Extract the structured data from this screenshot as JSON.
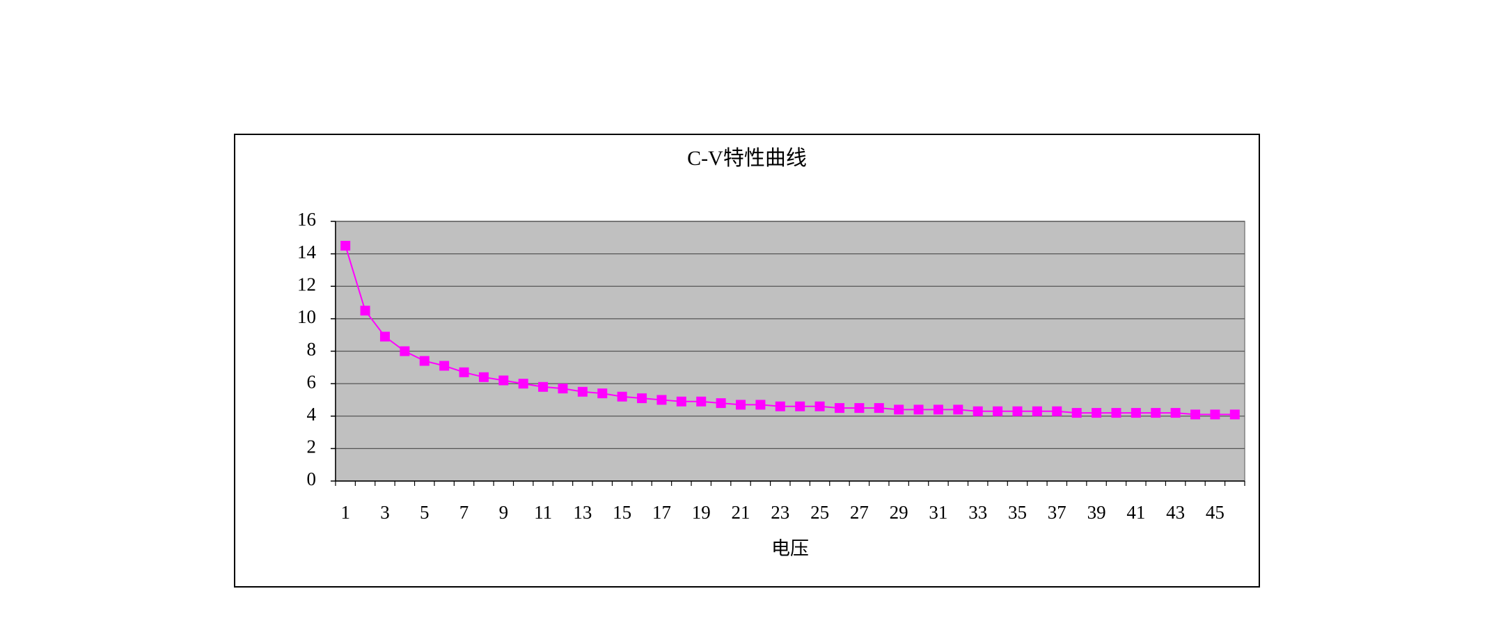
{
  "chart_data": {
    "type": "line",
    "title": "C-V特性曲线",
    "x_label": "电压",
    "categories": [
      "1",
      null,
      "3",
      null,
      "5",
      null,
      "7",
      null,
      "9",
      null,
      "11",
      null,
      "13",
      null,
      "15",
      null,
      "17",
      null,
      "19",
      null,
      "21",
      null,
      "23",
      null,
      "25",
      null,
      "27",
      null,
      "29",
      null,
      "31",
      null,
      "33",
      null,
      "35",
      null,
      "37",
      null,
      "39",
      null,
      "41",
      null,
      "43",
      null,
      "45",
      null
    ],
    "series": [
      {
        "color": "#ff00ff",
        "values": [
          14.5,
          10.5,
          8.9,
          8.0,
          7.4,
          7.1,
          6.7,
          6.4,
          6.2,
          6.0,
          5.8,
          5.7,
          5.5,
          5.4,
          5.2,
          5.1,
          5.0,
          4.9,
          4.9,
          4.8,
          4.7,
          4.7,
          4.6,
          4.6,
          4.6,
          4.5,
          4.5,
          4.5,
          4.4,
          4.4,
          4.4,
          4.4,
          4.3,
          4.3,
          4.3,
          4.3,
          4.3,
          4.2,
          4.2,
          4.2,
          4.2,
          4.2,
          4.2,
          4.1,
          4.1,
          4.1
        ]
      }
    ],
    "ylim": [
      0,
      16
    ],
    "yticks": [
      0,
      2,
      4,
      6,
      8,
      10,
      12,
      14,
      16
    ],
    "grid": true
  }
}
